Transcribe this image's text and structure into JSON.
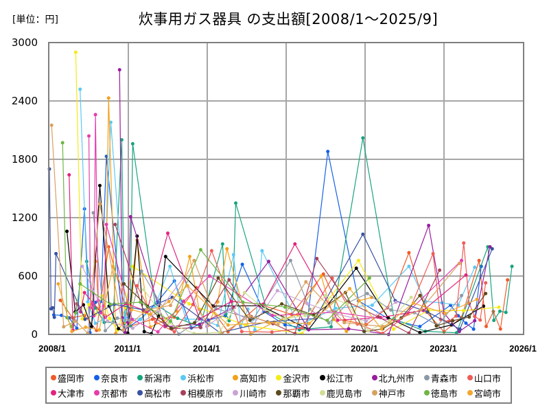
{
  "chart_data": {
    "type": "line",
    "title": "炊事用ガス器具 の支出額[2008/1～2025/9]",
    "unit_label": "[単位：円]",
    "xlabel": "",
    "ylabel": "",
    "ylim": [
      0,
      3000
    ],
    "xlim": [
      "2008/1",
      "2026/1"
    ],
    "y_ticks": [
      "3000",
      "2400",
      "1800",
      "1200",
      "600",
      "0"
    ],
    "x_ticks": [
      "2008/1",
      "2011/1",
      "2014/1",
      "2017/1",
      "2020/1",
      "2023/1",
      "2026/1"
    ],
    "grid": true,
    "legend_position": "bottom",
    "series": [
      {
        "name": "盛岡市",
        "color": "#F05A28",
        "x": [
          "2008/6",
          "2010/4",
          "2013/8",
          "2018/6",
          "2021/9",
          "2024/5",
          "2025/6"
        ],
        "values": [
          350,
          900,
          480,
          620,
          840,
          760,
          560
        ]
      },
      {
        "name": "奈良市",
        "color": "#1560E8",
        "x": [
          "2008/3",
          "2009/5",
          "2010/3",
          "2012/10",
          "2015/5",
          "2018/8",
          "2023/4",
          "2024/6"
        ],
        "values": [
          200,
          1290,
          1830,
          550,
          720,
          1880,
          300,
          700
        ]
      },
      {
        "name": "新潟市",
        "color": "#17A47E",
        "x": [
          "2009/6",
          "2010/10",
          "2011/3",
          "2014/8",
          "2015/2",
          "2019/12",
          "2024/9",
          "2025/8"
        ],
        "values": [
          750,
          2000,
          1960,
          930,
          1350,
          2020,
          900,
          700
        ]
      },
      {
        "name": "浜松市",
        "color": "#5BC8F5",
        "x": [
          "2009/3",
          "2010/5",
          "2012/8",
          "2015/1",
          "2016/2",
          "2021/9",
          "2024/3"
        ],
        "values": [
          2520,
          2180,
          700,
          820,
          860,
          700,
          690
        ]
      },
      {
        "name": "高知市",
        "color": "#F5A01A",
        "x": [
          "2009/10",
          "2010/4",
          "2011/5",
          "2013/5",
          "2014/10",
          "2018/5",
          "2020/4"
        ],
        "values": [
          750,
          2430,
          970,
          800,
          880,
          600,
          380
        ]
      },
      {
        "name": "金沢市",
        "color": "#F5EB14",
        "x": [
          "2009/1",
          "2010/1",
          "2011/3",
          "2019/10",
          "2025/2"
        ],
        "values": [
          2900,
          400,
          700,
          760,
          280
        ]
      },
      {
        "name": "松江市",
        "color": "#000000",
        "x": [
          "2008/9",
          "2009/12",
          "2011/5",
          "2012/6",
          "2019/9",
          "2024/7"
        ],
        "values": [
          1060,
          1530,
          1010,
          800,
          680,
          290
        ]
      },
      {
        "name": "北九州市",
        "color": "#9B1B9E",
        "x": [
          "2010/9",
          "2011/2",
          "2016/5",
          "2022/6",
          "2024/10"
        ],
        "values": [
          2720,
          1210,
          750,
          1120,
          900
        ]
      },
      {
        "name": "青森市",
        "color": "#8C9AA8",
        "x": [
          "2009/9",
          "2011/7",
          "2017/3",
          "2020/2",
          "2023/9"
        ],
        "values": [
          1250,
          650,
          760,
          420,
          400
        ]
      },
      {
        "name": "山口市",
        "color": "#F05B55",
        "x": [
          "2011/5",
          "2014/3",
          "2018/10",
          "2022/8",
          "2023/10",
          "2024/8"
        ],
        "values": [
          500,
          860,
          580,
          830,
          940,
          530
        ]
      },
      {
        "name": "大津市",
        "color": "#E3237D",
        "x": [
          "2008/10",
          "2009/5",
          "2012/7",
          "2017/5",
          "2023/11"
        ],
        "values": [
          1640,
          430,
          1040,
          930,
          610
        ]
      },
      {
        "name": "京都市",
        "color": "#E63CAE",
        "x": [
          "2009/7",
          "2009/10",
          "2010/3",
          "2014/2",
          "2023/9"
        ],
        "values": [
          2040,
          2260,
          1130,
          600,
          760
        ]
      },
      {
        "name": "高松市",
        "color": "#3852A4",
        "x": [
          "2008/1",
          "2008/4",
          "2012/9",
          "2019/12",
          "2024/11"
        ],
        "values": [
          1700,
          830,
          380,
          1030,
          880
        ]
      },
      {
        "name": "相模原市",
        "color": "#A8405A",
        "x": [
          "2010/7",
          "2014/11",
          "2018/3",
          "2022/11"
        ],
        "values": [
          1130,
          560,
          780,
          660
        ]
      },
      {
        "name": "川崎市",
        "color": "#C9A3D4",
        "x": [
          "2009/4",
          "2013/2",
          "2016/9",
          "2021/3"
        ],
        "values": [
          700,
          580,
          450,
          330
        ]
      },
      {
        "name": "那覇市",
        "color": "#5C4A1E",
        "x": [
          "2010/11",
          "2014/6",
          "2019/4",
          "2022/2",
          "2024/8"
        ],
        "values": [
          520,
          580,
          430,
          400,
          420
        ]
      },
      {
        "name": "鹿児島市",
        "color": "#D2DE94",
        "x": [
          "2011/8",
          "2015/6",
          "2018/7",
          "2021/10"
        ],
        "values": [
          460,
          430,
          400,
          380
        ]
      },
      {
        "name": "神戸市",
        "color": "#D8A060",
        "x": [
          "2008/2",
          "2009/12",
          "2013/7",
          "2017/10",
          "2023/8"
        ],
        "values": [
          2150,
          1340,
          760,
          540,
          730
        ]
      },
      {
        "name": "徳島市",
        "color": "#6EB643",
        "x": [
          "2008/7",
          "2009/3",
          "2013/10",
          "2020/3"
        ],
        "values": [
          1970,
          520,
          870,
          580
        ]
      },
      {
        "name": "宮崎市",
        "color": "#F0A830",
        "x": [
          "2008/5",
          "2010/6",
          "2013/4",
          "2019/6",
          "2024/4"
        ],
        "values": [
          520,
          700,
          500,
          470,
          360
        ]
      }
    ],
    "notes": "Dense monthly scatter of ~20 city series, most values in 0–600 range; listed points are approximate visible peaks."
  }
}
